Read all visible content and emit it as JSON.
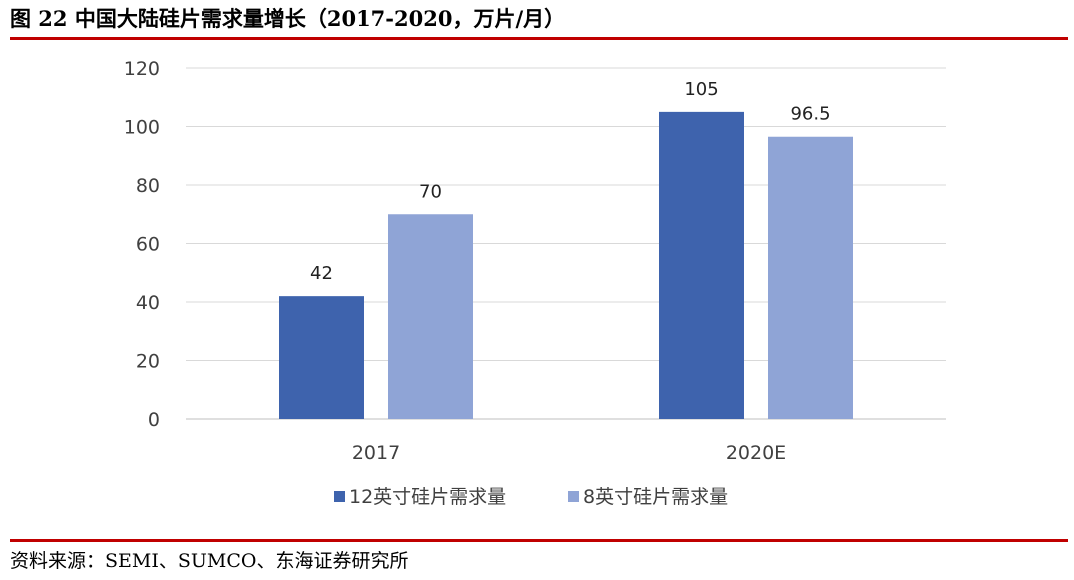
{
  "figure": {
    "title": "图 22  中国大陆硅片需求量增长（2017-2020，万片/月）",
    "source": "资料来源：SEMI、SUMCO、东海证券研究所"
  },
  "chart_data": {
    "type": "bar",
    "title": "",
    "xlabel": "",
    "ylabel": "",
    "categories": [
      "2017",
      "2020E"
    ],
    "series": [
      {
        "name": "12英寸硅片需求量",
        "values": [
          42,
          105
        ],
        "color": "#3e63ad"
      },
      {
        "name": "8英寸硅片需求量",
        "values": [
          70,
          96.5
        ],
        "color": "#8fa4d6"
      }
    ],
    "ylim": [
      0,
      120
    ],
    "yticks": [
      0,
      20,
      40,
      60,
      80,
      100,
      120
    ],
    "grid": true,
    "legend": "bottom",
    "data_labels": true
  }
}
